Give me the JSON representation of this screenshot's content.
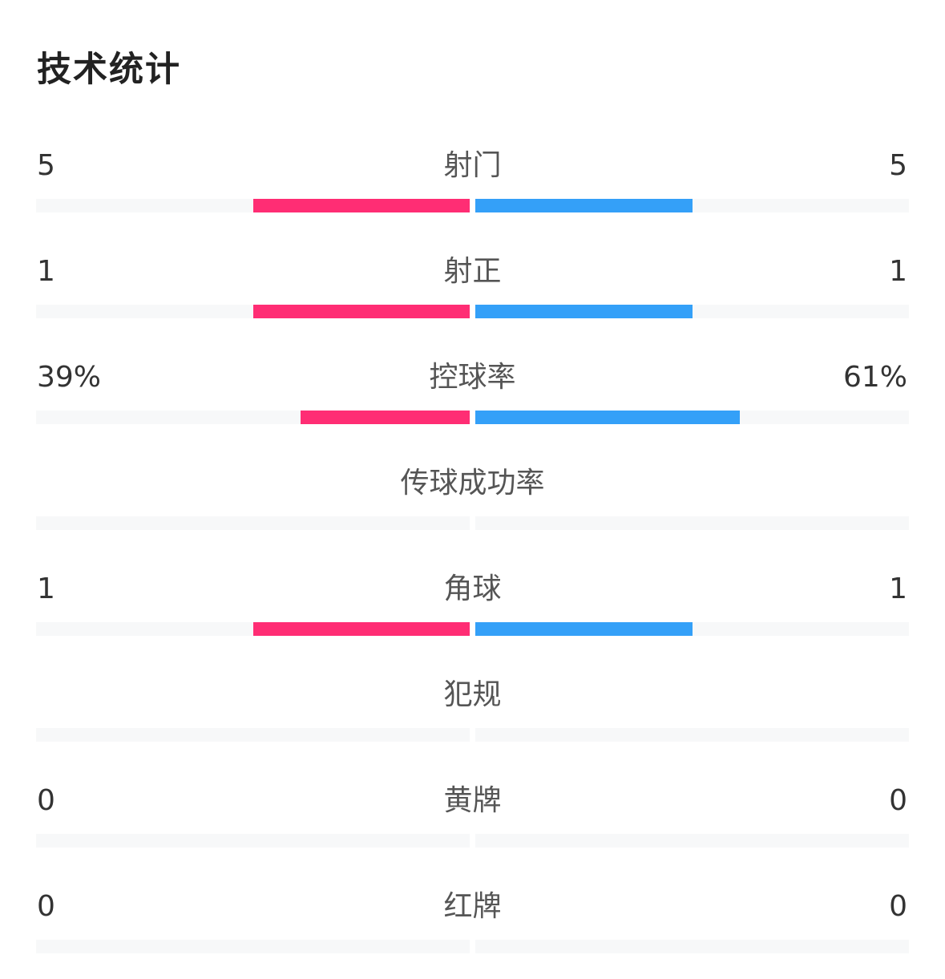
{
  "title": "技术统计",
  "colors": {
    "home": "#FF2D74",
    "away": "#34A0F8",
    "track": "#F7F8F9"
  },
  "stats": [
    {
      "label": "射门",
      "home": "5",
      "away": "5",
      "home_pct": 50,
      "away_pct": 50
    },
    {
      "label": "射正",
      "home": "1",
      "away": "1",
      "home_pct": 50,
      "away_pct": 50
    },
    {
      "label": "控球率",
      "home": "39%",
      "away": "61%",
      "home_pct": 39,
      "away_pct": 61
    },
    {
      "label": "传球成功率",
      "home": "",
      "away": "",
      "home_pct": 0,
      "away_pct": 0
    },
    {
      "label": "角球",
      "home": "1",
      "away": "1",
      "home_pct": 50,
      "away_pct": 50
    },
    {
      "label": "犯规",
      "home": "",
      "away": "",
      "home_pct": 0,
      "away_pct": 0
    },
    {
      "label": "黄牌",
      "home": "0",
      "away": "0",
      "home_pct": 0,
      "away_pct": 0
    },
    {
      "label": "红牌",
      "home": "0",
      "away": "0",
      "home_pct": 0,
      "away_pct": 0
    }
  ]
}
